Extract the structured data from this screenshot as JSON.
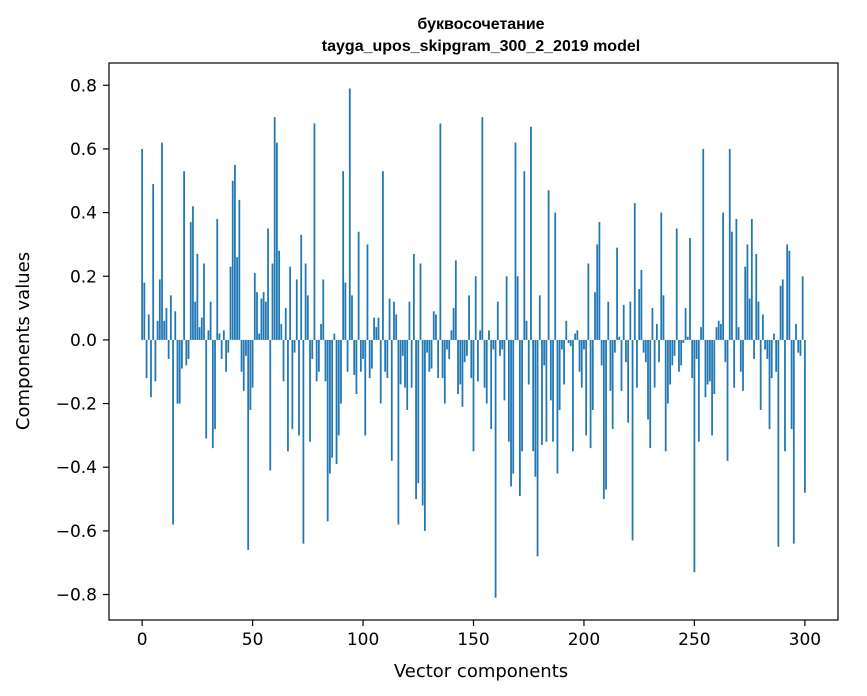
{
  "chart_data": {
    "type": "bar",
    "title": "буквосочетание",
    "subtitle": "tayga_upos_skipgram_300_2_2019 model",
    "xlabel": "Vector components",
    "ylabel": "Components values",
    "xlim": [
      -15,
      315
    ],
    "ylim": [
      -0.88,
      0.87
    ],
    "xticks": [
      0,
      50,
      100,
      150,
      200,
      250,
      300
    ],
    "xtick_labels": [
      "0",
      "50",
      "100",
      "150",
      "200",
      "250",
      "300"
    ],
    "yticks": [
      -0.8,
      -0.6,
      -0.4,
      -0.2,
      0.0,
      0.2,
      0.4,
      0.6,
      0.8
    ],
    "ytick_labels": [
      "−0.8",
      "−0.6",
      "−0.4",
      "−0.2",
      "0.0",
      "0.2",
      "0.4",
      "0.6",
      "0.8"
    ],
    "grid": false,
    "bar_color": "#1f77b4",
    "values": [
      0.6,
      0.18,
      -0.12,
      0.08,
      -0.18,
      0.49,
      -0.13,
      0.06,
      0.19,
      0.62,
      0.06,
      0.1,
      -0.06,
      0.14,
      -0.58,
      0.09,
      -0.2,
      -0.2,
      -0.09,
      0.53,
      -0.08,
      -0.06,
      0.37,
      0.42,
      0.12,
      0.27,
      0.04,
      0.07,
      0.24,
      -0.31,
      0.03,
      0.12,
      -0.34,
      -0.28,
      0.38,
      0.02,
      -0.06,
      0.03,
      -0.1,
      -0.04,
      0.23,
      0.5,
      0.55,
      0.26,
      0.44,
      -0.1,
      -0.16,
      -0.05,
      -0.66,
      -0.22,
      -0.15,
      0.21,
      0.15,
      0.02,
      0.13,
      0.15,
      0.12,
      0.35,
      -0.41,
      0.24,
      0.7,
      0.62,
      0.28,
      0.05,
      -0.13,
      0.1,
      -0.35,
      0.23,
      -0.28,
      -0.04,
      0.19,
      -0.3,
      0.33,
      -0.64,
      0.24,
      0.14,
      -0.32,
      -0.06,
      0.68,
      -0.13,
      -0.1,
      0.05,
      0.19,
      -0.13,
      -0.57,
      -0.42,
      -0.37,
      0.02,
      -0.39,
      -0.3,
      -0.2,
      0.53,
      0.18,
      -0.1,
      0.79,
      0.14,
      -0.11,
      -0.17,
      0.34,
      -0.1,
      -0.06,
      -0.3,
      0.3,
      -0.12,
      -0.09,
      0.07,
      0.04,
      0.07,
      -0.2,
      0.53,
      -0.1,
      -0.12,
      0.13,
      -0.38,
      0.12,
      0.08,
      -0.58,
      -0.14,
      -0.05,
      -0.15,
      -0.22,
      0.12,
      -0.15,
      0.27,
      -0.5,
      -0.45,
      0.24,
      -0.52,
      -0.6,
      -0.04,
      -0.1,
      -0.09,
      0.09,
      0.08,
      -0.12,
      0.68,
      -0.12,
      -0.2,
      -0.03,
      -0.06,
      0.03,
      0.1,
      0.25,
      -0.17,
      -0.14,
      -0.21,
      -0.07,
      -0.05,
      0.14,
      -0.12,
      -0.35,
      0.2,
      -0.13,
      0.03,
      0.7,
      -0.15,
      -0.2,
      0.03,
      -0.28,
      -0.03,
      -0.81,
      0.12,
      -0.05,
      -0.03,
      -0.19,
      0.2,
      -0.32,
      -0.46,
      -0.42,
      0.62,
      0.2,
      -0.49,
      -0.35,
      0.53,
      0.06,
      -0.14,
      0.67,
      -0.35,
      -0.43,
      -0.68,
      0.14,
      -0.33,
      -0.08,
      -0.32,
      0.47,
      -0.19,
      -0.32,
      0.4,
      -0.42,
      -0.22,
      -0.03,
      -0.14,
      0.06,
      -0.01,
      -0.02,
      -0.35,
      0.02,
      0.03,
      -0.1,
      -0.15,
      -0.03,
      -0.3,
      0.24,
      -0.34,
      -0.22,
      0.15,
      0.3,
      0.37,
      -0.08,
      -0.5,
      -0.47,
      0.12,
      -0.16,
      -0.28,
      -0.04,
      0.29,
      0.01,
      -0.16,
      0.11,
      -0.07,
      -0.26,
      0.12,
      -0.63,
      0.43,
      -0.15,
      0.16,
      0.22,
      -0.04,
      -0.07,
      -0.25,
      -0.34,
      0.1,
      -0.15,
      0.05,
      -0.07,
      0.4,
      0.14,
      -0.35,
      -0.2,
      -0.14,
      -0.08,
      -0.05,
      0.35,
      -0.1,
      -0.08,
      -0.01,
      0.1,
      0.01,
      0.32,
      -0.12,
      -0.73,
      -0.06,
      -0.32,
      0.04,
      0.6,
      -0.18,
      -0.14,
      -0.13,
      -0.3,
      -0.17,
      0.04,
      0.06,
      0.05,
      0.4,
      -0.07,
      -0.38,
      0.6,
      0.34,
      -0.15,
      0.38,
      0.04,
      -0.1,
      -0.16,
      0.23,
      0.3,
      0.13,
      0.38,
      -0.06,
      0.27,
      0.12,
      -0.22,
      0.08,
      -0.03,
      -0.06,
      -0.28,
      -0.12,
      0.02,
      -0.1,
      -0.65,
      0.17,
      0.19,
      -0.35,
      0.3,
      0.28,
      -0.28,
      -0.64,
      0.05,
      -0.04,
      -0.05,
      0.2,
      -0.48
    ]
  }
}
